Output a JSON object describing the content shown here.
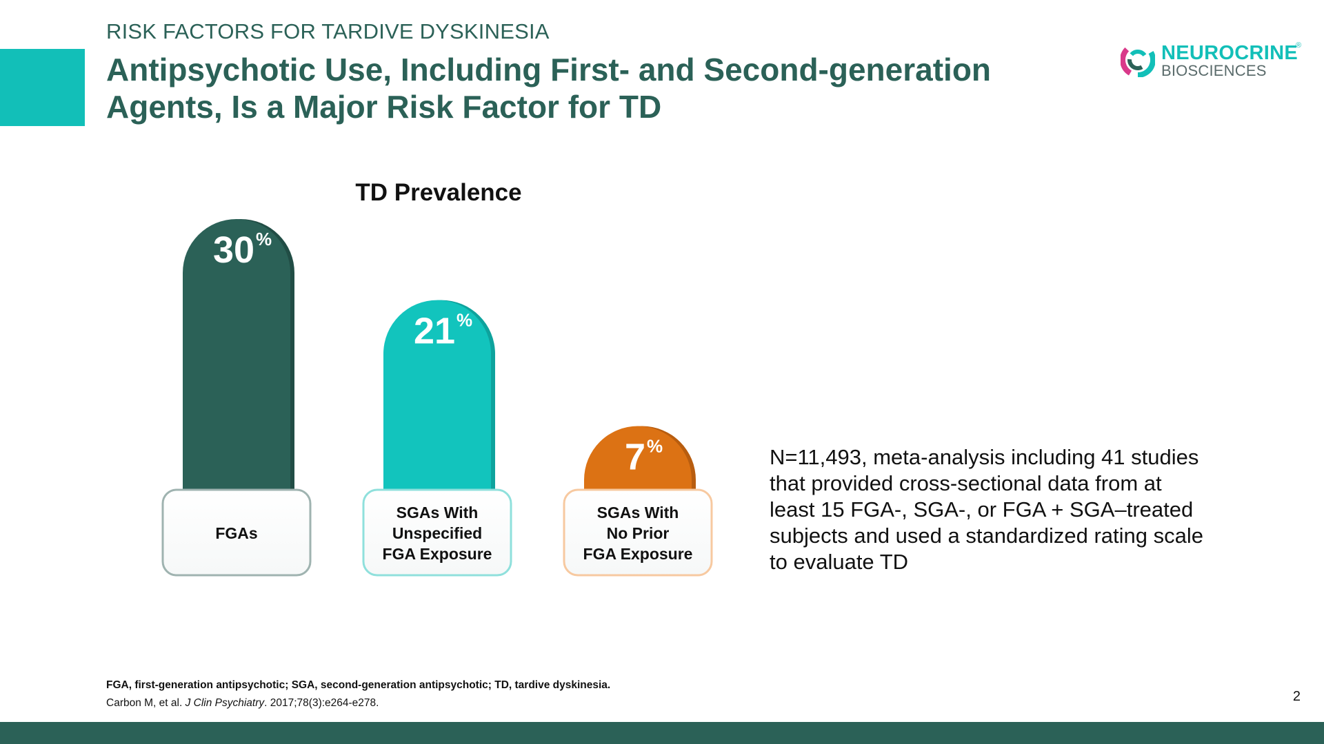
{
  "header": {
    "kicker": "RISK FACTORS FOR TARDIVE DYSKINESIA",
    "title": "Antipsychotic Use, Including First- and Second-generation Agents, Is a Major Risk Factor for TD"
  },
  "logo": {
    "word1": "NEUROCRINE",
    "registered": "®",
    "word2": "BIOSCIENCES"
  },
  "chart_data": {
    "type": "bar",
    "title": "TD Prevalence",
    "categories": [
      "FGAs",
      "SGAs With Unspecified FGA Exposure",
      "SGAs With No Prior FGA Exposure"
    ],
    "category_lines": [
      [
        "FGAs"
      ],
      [
        "SGAs With",
        "Unspecified",
        "FGA Exposure"
      ],
      [
        "SGAs With",
        "No Prior",
        "FGA Exposure"
      ]
    ],
    "values": [
      30,
      21,
      7
    ],
    "value_labels": [
      "30",
      "21",
      "7"
    ],
    "unit": "%",
    "ylim": [
      0,
      30
    ],
    "colors": [
      "#2b6157",
      "#12c4bd",
      "#dc7214"
    ],
    "shade_colors": [
      "#214d45",
      "#0ea39d",
      "#b85d0f"
    ],
    "border_colors": [
      "#9fb3b0",
      "#8fe0dc",
      "#f7c9a0"
    ],
    "grid": false,
    "legend": "none"
  },
  "note": "N=11,493, meta-analysis including 41 studies that provided cross-sectional data from at least 15 FGA-, SGA-, or FGA + SGA–treated subjects and used a standardized rating scale to evaluate TD",
  "footer": {
    "abbreviations": "FGA, first-generation antipsychotic; SGA, second-generation antipsychotic; TD, tardive dyskinesia.",
    "citation_authors": "Carbon M, et al. ",
    "citation_journal": "J Clin Psychiatry",
    "citation_details": ". 2017;78(3):e264-e278.",
    "page_number": "2"
  },
  "colors": {
    "brand_dark": "#2b6157",
    "brand_teal": "#12bfb8",
    "accent_orange": "#dc7214"
  }
}
